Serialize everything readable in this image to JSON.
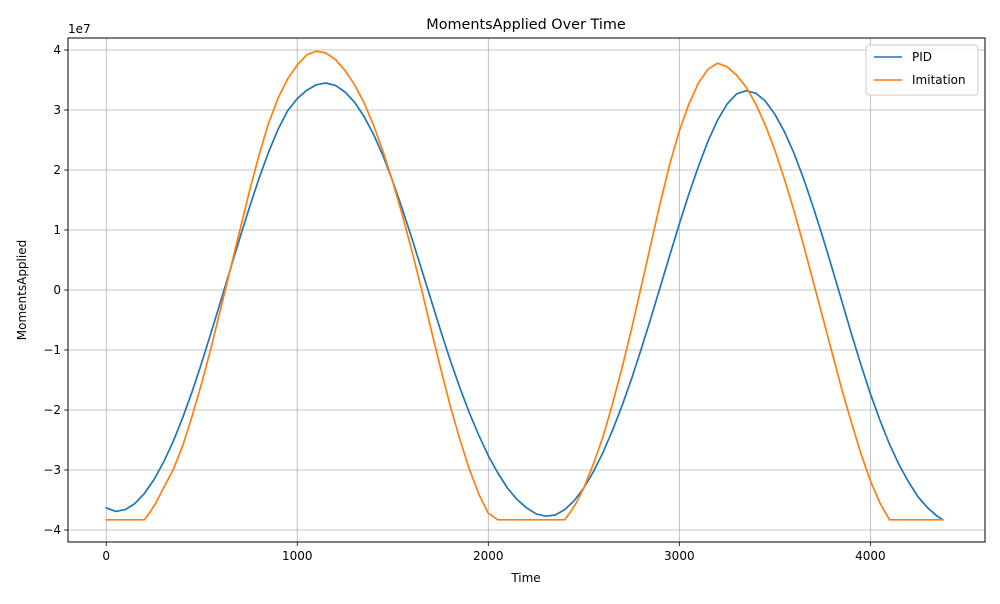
{
  "chart_data": {
    "type": "line",
    "title": "MomentsApplied Over Time",
    "xlabel": "Time",
    "ylabel": "MomentsApplied",
    "y_offset_label": "1e7",
    "y_scale": 10000000,
    "xlim": [
      -200,
      4600
    ],
    "ylim": [
      -4.2,
      4.2
    ],
    "xticks": [
      0,
      1000,
      2000,
      3000,
      4000
    ],
    "xtick_labels": [
      "0",
      "1000",
      "2000",
      "3000",
      "4000"
    ],
    "yticks": [
      -4,
      -3,
      -2,
      -1,
      0,
      1,
      2,
      3,
      4
    ],
    "ytick_labels": [
      "−4",
      "−3",
      "−2",
      "−1",
      "0",
      "1",
      "2",
      "3",
      "4"
    ],
    "grid": true,
    "legend_position": "top-right",
    "series": [
      {
        "name": "PID",
        "color": "#1f77b4",
        "x": [
          0,
          50,
          100,
          150,
          200,
          250,
          300,
          350,
          400,
          450,
          500,
          550,
          600,
          650,
          700,
          750,
          800,
          850,
          900,
          950,
          1000,
          1050,
          1100,
          1150,
          1200,
          1250,
          1300,
          1350,
          1400,
          1450,
          1500,
          1550,
          1600,
          1650,
          1700,
          1750,
          1800,
          1850,
          1900,
          1950,
          2000,
          2050,
          2100,
          2150,
          2200,
          2250,
          2300,
          2350,
          2400,
          2450,
          2500,
          2550,
          2600,
          2650,
          2700,
          2750,
          2800,
          2850,
          2900,
          2950,
          3000,
          3050,
          3100,
          3150,
          3200,
          3250,
          3300,
          3350,
          3400,
          3450,
          3500,
          3550,
          3600,
          3650,
          3700,
          3750,
          3800,
          3850,
          3900,
          3950,
          4000,
          4050,
          4100,
          4150,
          4200,
          4250,
          4300,
          4350,
          4380
        ],
        "y": [
          -3.63,
          -3.69,
          -3.66,
          -3.56,
          -3.39,
          -3.16,
          -2.87,
          -2.53,
          -2.13,
          -1.69,
          -1.21,
          -0.7,
          -0.18,
          0.35,
          0.87,
          1.38,
          1.86,
          2.3,
          2.68,
          2.99,
          3.19,
          3.33,
          3.42,
          3.45,
          3.41,
          3.3,
          3.13,
          2.89,
          2.59,
          2.23,
          1.81,
          1.35,
          0.86,
          0.35,
          -0.16,
          -0.67,
          -1.16,
          -1.62,
          -2.04,
          -2.42,
          -2.76,
          -3.05,
          -3.3,
          -3.49,
          -3.63,
          -3.73,
          -3.77,
          -3.75,
          -3.66,
          -3.51,
          -3.3,
          -3.03,
          -2.71,
          -2.34,
          -1.93,
          -1.48,
          -0.99,
          -0.48,
          0.05,
          0.58,
          1.1,
          1.6,
          2.06,
          2.48,
          2.83,
          3.1,
          3.27,
          3.32,
          3.28,
          3.15,
          2.93,
          2.64,
          2.28,
          1.86,
          1.39,
          0.89,
          0.36,
          -0.18,
          -0.72,
          -1.24,
          -1.73,
          -2.17,
          -2.57,
          -2.91,
          -3.2,
          -3.45,
          -3.63,
          -3.77,
          -3.83
        ]
      },
      {
        "name": "Imitation",
        "color": "#ff7f0e",
        "x": [
          0,
          50,
          100,
          150,
          200,
          230,
          260,
          300,
          350,
          400,
          450,
          500,
          550,
          600,
          650,
          700,
          750,
          800,
          850,
          900,
          950,
          1000,
          1050,
          1100,
          1150,
          1200,
          1250,
          1300,
          1350,
          1400,
          1450,
          1500,
          1550,
          1600,
          1650,
          1700,
          1750,
          1800,
          1850,
          1900,
          1950,
          2000,
          2050,
          2100,
          2150,
          2200,
          2250,
          2300,
          2350,
          2400,
          2430,
          2460,
          2500,
          2550,
          2600,
          2650,
          2700,
          2750,
          2800,
          2850,
          2900,
          2950,
          3000,
          3050,
          3100,
          3150,
          3200,
          3250,
          3300,
          3350,
          3400,
          3450,
          3500,
          3550,
          3600,
          3650,
          3700,
          3750,
          3800,
          3850,
          3900,
          3950,
          4000,
          4050,
          4100,
          4150,
          4200,
          4230,
          4250,
          4300,
          4380
        ],
        "y": [
          -3.83,
          -3.83,
          -3.83,
          -3.83,
          -3.83,
          -3.7,
          -3.55,
          -3.3,
          -3.0,
          -2.6,
          -2.1,
          -1.55,
          -0.95,
          -0.3,
          0.35,
          1.0,
          1.65,
          2.25,
          2.78,
          3.2,
          3.52,
          3.75,
          3.92,
          3.98,
          3.95,
          3.84,
          3.66,
          3.42,
          3.12,
          2.74,
          2.3,
          1.8,
          1.25,
          0.65,
          0.02,
          -0.65,
          -1.3,
          -1.92,
          -2.48,
          -2.98,
          -3.4,
          -3.72,
          -3.83,
          -3.83,
          -3.83,
          -3.83,
          -3.83,
          -3.83,
          -3.83,
          -3.83,
          -3.7,
          -3.55,
          -3.3,
          -2.9,
          -2.45,
          -1.9,
          -1.3,
          -0.65,
          0.05,
          0.75,
          1.45,
          2.1,
          2.65,
          3.1,
          3.45,
          3.68,
          3.78,
          3.72,
          3.58,
          3.38,
          3.1,
          2.75,
          2.33,
          1.85,
          1.32,
          0.75,
          0.15,
          -0.45,
          -1.05,
          -1.65,
          -2.2,
          -2.72,
          -3.18,
          -3.55,
          -3.83,
          -3.83,
          -3.83,
          -3.83,
          -3.83,
          -3.83,
          -3.83
        ]
      }
    ]
  }
}
